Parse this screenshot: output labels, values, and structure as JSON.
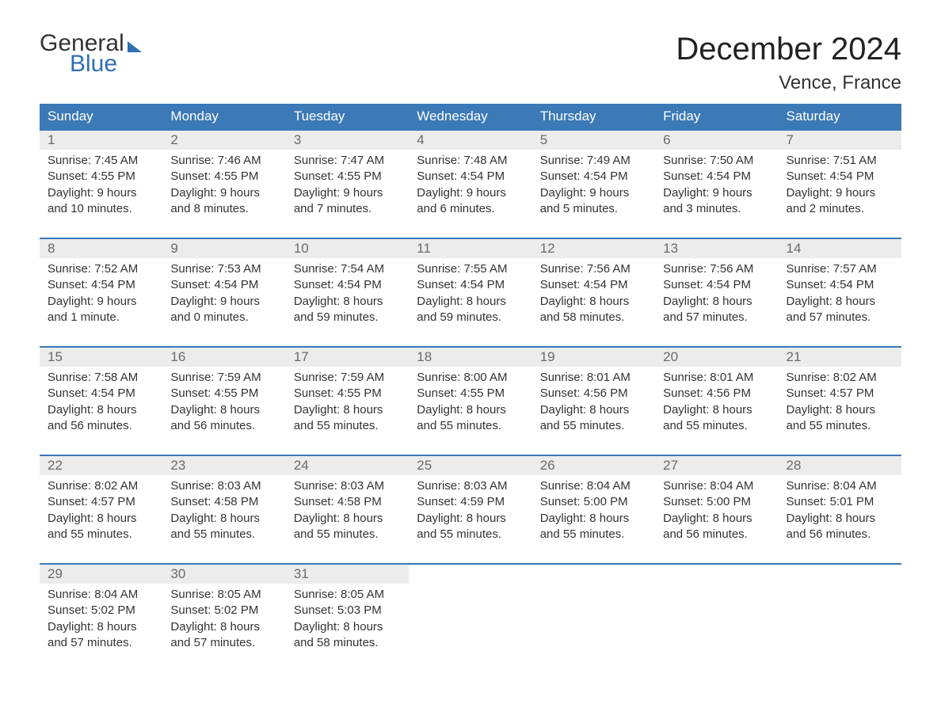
{
  "logo": {
    "line1": "General",
    "line2": "Blue"
  },
  "title": "December 2024",
  "location": "Vence, France",
  "colors": {
    "header_bg": "#3b79b7",
    "header_text": "#ffffff",
    "daynum_bg": "#ececec",
    "daynum_text": "#6a6a6a",
    "body_text": "#333333",
    "logo_blue": "#2f6fb0",
    "week_border": "#3b79b7"
  },
  "day_headers": [
    "Sunday",
    "Monday",
    "Tuesday",
    "Wednesday",
    "Thursday",
    "Friday",
    "Saturday"
  ],
  "weeks": [
    [
      {
        "n": "1",
        "sunrise": "7:45 AM",
        "sunset": "4:55 PM",
        "daylight": "9 hours and 10 minutes."
      },
      {
        "n": "2",
        "sunrise": "7:46 AM",
        "sunset": "4:55 PM",
        "daylight": "9 hours and 8 minutes."
      },
      {
        "n": "3",
        "sunrise": "7:47 AM",
        "sunset": "4:55 PM",
        "daylight": "9 hours and 7 minutes."
      },
      {
        "n": "4",
        "sunrise": "7:48 AM",
        "sunset": "4:54 PM",
        "daylight": "9 hours and 6 minutes."
      },
      {
        "n": "5",
        "sunrise": "7:49 AM",
        "sunset": "4:54 PM",
        "daylight": "9 hours and 5 minutes."
      },
      {
        "n": "6",
        "sunrise": "7:50 AM",
        "sunset": "4:54 PM",
        "daylight": "9 hours and 3 minutes."
      },
      {
        "n": "7",
        "sunrise": "7:51 AM",
        "sunset": "4:54 PM",
        "daylight": "9 hours and 2 minutes."
      }
    ],
    [
      {
        "n": "8",
        "sunrise": "7:52 AM",
        "sunset": "4:54 PM",
        "daylight": "9 hours and 1 minute."
      },
      {
        "n": "9",
        "sunrise": "7:53 AM",
        "sunset": "4:54 PM",
        "daylight": "9 hours and 0 minutes."
      },
      {
        "n": "10",
        "sunrise": "7:54 AM",
        "sunset": "4:54 PM",
        "daylight": "8 hours and 59 minutes."
      },
      {
        "n": "11",
        "sunrise": "7:55 AM",
        "sunset": "4:54 PM",
        "daylight": "8 hours and 59 minutes."
      },
      {
        "n": "12",
        "sunrise": "7:56 AM",
        "sunset": "4:54 PM",
        "daylight": "8 hours and 58 minutes."
      },
      {
        "n": "13",
        "sunrise": "7:56 AM",
        "sunset": "4:54 PM",
        "daylight": "8 hours and 57 minutes."
      },
      {
        "n": "14",
        "sunrise": "7:57 AM",
        "sunset": "4:54 PM",
        "daylight": "8 hours and 57 minutes."
      }
    ],
    [
      {
        "n": "15",
        "sunrise": "7:58 AM",
        "sunset": "4:54 PM",
        "daylight": "8 hours and 56 minutes."
      },
      {
        "n": "16",
        "sunrise": "7:59 AM",
        "sunset": "4:55 PM",
        "daylight": "8 hours and 56 minutes."
      },
      {
        "n": "17",
        "sunrise": "7:59 AM",
        "sunset": "4:55 PM",
        "daylight": "8 hours and 55 minutes."
      },
      {
        "n": "18",
        "sunrise": "8:00 AM",
        "sunset": "4:55 PM",
        "daylight": "8 hours and 55 minutes."
      },
      {
        "n": "19",
        "sunrise": "8:01 AM",
        "sunset": "4:56 PM",
        "daylight": "8 hours and 55 minutes."
      },
      {
        "n": "20",
        "sunrise": "8:01 AM",
        "sunset": "4:56 PM",
        "daylight": "8 hours and 55 minutes."
      },
      {
        "n": "21",
        "sunrise": "8:02 AM",
        "sunset": "4:57 PM",
        "daylight": "8 hours and 55 minutes."
      }
    ],
    [
      {
        "n": "22",
        "sunrise": "8:02 AM",
        "sunset": "4:57 PM",
        "daylight": "8 hours and 55 minutes."
      },
      {
        "n": "23",
        "sunrise": "8:03 AM",
        "sunset": "4:58 PM",
        "daylight": "8 hours and 55 minutes."
      },
      {
        "n": "24",
        "sunrise": "8:03 AM",
        "sunset": "4:58 PM",
        "daylight": "8 hours and 55 minutes."
      },
      {
        "n": "25",
        "sunrise": "8:03 AM",
        "sunset": "4:59 PM",
        "daylight": "8 hours and 55 minutes."
      },
      {
        "n": "26",
        "sunrise": "8:04 AM",
        "sunset": "5:00 PM",
        "daylight": "8 hours and 55 minutes."
      },
      {
        "n": "27",
        "sunrise": "8:04 AM",
        "sunset": "5:00 PM",
        "daylight": "8 hours and 56 minutes."
      },
      {
        "n": "28",
        "sunrise": "8:04 AM",
        "sunset": "5:01 PM",
        "daylight": "8 hours and 56 minutes."
      }
    ],
    [
      {
        "n": "29",
        "sunrise": "8:04 AM",
        "sunset": "5:02 PM",
        "daylight": "8 hours and 57 minutes."
      },
      {
        "n": "30",
        "sunrise": "8:05 AM",
        "sunset": "5:02 PM",
        "daylight": "8 hours and 57 minutes."
      },
      {
        "n": "31",
        "sunrise": "8:05 AM",
        "sunset": "5:03 PM",
        "daylight": "8 hours and 58 minutes."
      },
      null,
      null,
      null,
      null
    ]
  ],
  "labels": {
    "sunrise": "Sunrise:",
    "sunset": "Sunset:",
    "daylight": "Daylight:"
  }
}
